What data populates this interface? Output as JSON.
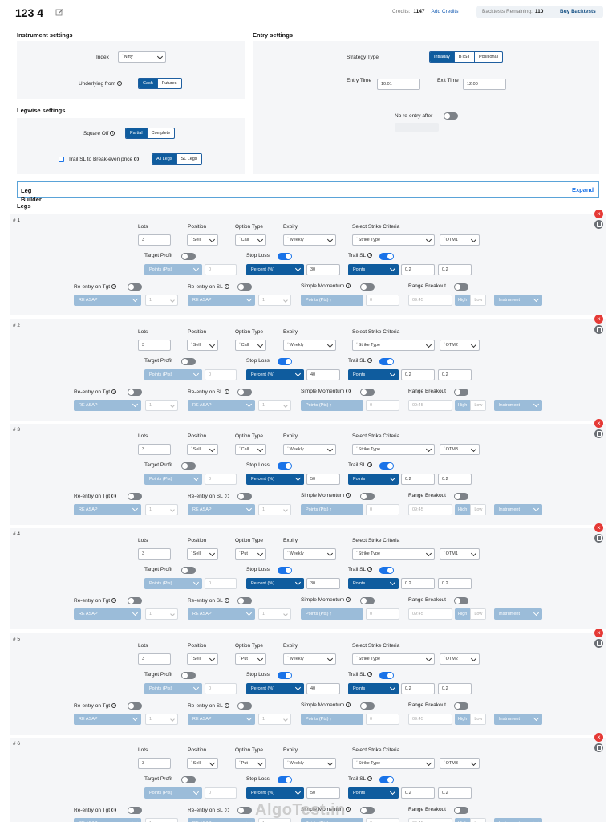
{
  "header": {
    "title": "123 4",
    "credits_label": "Credits:",
    "credits_value": "1147",
    "add_credits": "Add Credits",
    "backtests_label": "Backtests Remaining:",
    "backtests_value": "110",
    "buy_backtests": "Buy Backtests"
  },
  "instrument": {
    "title": "Instrument settings",
    "index_label": "Index",
    "index_value": "Nifty",
    "underlying_label": "Underlying from",
    "underlying_options": [
      "Cash",
      "Futures"
    ],
    "underlying_selected": "Cash"
  },
  "entry": {
    "title": "Entry settings",
    "strategy_label": "Strategy Type",
    "strategy_options": [
      "Intraday",
      "BTST",
      "Positional"
    ],
    "entry_time_label": "Entry Time",
    "entry_time": "10:01",
    "exit_time_label": "Exit Time",
    "exit_time": "12:00",
    "no_reentry_label": "No re-entry after"
  },
  "legwise": {
    "title": "Legwise settings",
    "square_off_label": "Square Off",
    "square_off_options": [
      "Partial",
      "Complete"
    ],
    "trail_label": "Trail SL to Break-even price",
    "trail_options": [
      "All Legs",
      "SL Legs"
    ]
  },
  "builder": {
    "title": "Leg Builder",
    "expand": "Expand"
  },
  "legs_title": "Legs",
  "leg_labels": {
    "lots": "Lots",
    "position": "Position",
    "option_type": "Option Type",
    "expiry": "Expiry",
    "strike_criteria": "Select Strike Criteria",
    "target_profit": "Target Profit",
    "stop_loss": "Stop Loss",
    "trail_sl": "Trail SL",
    "reentry_tgt": "Re-entry on Tgt",
    "reentry_sl": "Re-entry on SL",
    "simple_momentum": "Simple Momentum",
    "range_breakout": "Range Breakout",
    "points_pts": "Points (Pts)",
    "percent": "Percent (%)",
    "points": "Points",
    "re_asap": "RE ASAP",
    "points_pts_trunc": "Points (Pts) ↑",
    "time": "09:45",
    "high": "High",
    "low": "Low",
    "instrument": "Instrument"
  },
  "legs": [
    {
      "num": "# 1",
      "lots": "3",
      "position": "Sell",
      "option": "Call",
      "expiry": "Weekly",
      "strike_type": "Strike Type",
      "strike": "OTM1",
      "tp_value": "0",
      "sl_value": "30",
      "trail_x": "0.2",
      "trail_y": "0.2",
      "re_tgt_count": "1",
      "re_sl_count": "1",
      "mom_value": "0"
    },
    {
      "num": "# 2",
      "lots": "3",
      "position": "Sell",
      "option": "Call",
      "expiry": "Weekly",
      "strike_type": "Strike Type",
      "strike": "OTM2",
      "tp_value": "0",
      "sl_value": "40",
      "trail_x": "0.2",
      "trail_y": "0.2",
      "re_tgt_count": "1",
      "re_sl_count": "1",
      "mom_value": "0"
    },
    {
      "num": "# 3",
      "lots": "3",
      "position": "Sell",
      "option": "Call",
      "expiry": "Weekly",
      "strike_type": "Strike Type",
      "strike": "OTM3",
      "tp_value": "0",
      "sl_value": "50",
      "trail_x": "0.2",
      "trail_y": "0.2",
      "re_tgt_count": "1",
      "re_sl_count": "1",
      "mom_value": "0"
    },
    {
      "num": "# 4",
      "lots": "3",
      "position": "Sell",
      "option": "Put",
      "expiry": "Weekly",
      "strike_type": "Strike Type",
      "strike": "OTM1",
      "tp_value": "0",
      "sl_value": "30",
      "trail_x": "0.2",
      "trail_y": "0.2",
      "re_tgt_count": "1",
      "re_sl_count": "1",
      "mom_value": "0"
    },
    {
      "num": "# 5",
      "lots": "3",
      "position": "Sell",
      "option": "Put",
      "expiry": "Weekly",
      "strike_type": "Strike Type",
      "strike": "OTM2",
      "tp_value": "0",
      "sl_value": "40",
      "trail_x": "0.2",
      "trail_y": "0.2",
      "re_tgt_count": "1",
      "re_sl_count": "1",
      "mom_value": "0"
    },
    {
      "num": "# 6",
      "lots": "3",
      "position": "Sell",
      "option": "Put",
      "expiry": "Weekly",
      "strike_type": "Strike Type",
      "strike": "OTM3",
      "tp_value": "0",
      "sl_value": "50",
      "trail_x": "0.2",
      "trail_y": "0.2",
      "re_tgt_count": "1",
      "re_sl_count": "1",
      "mom_value": "0"
    }
  ],
  "watermark": "AlgoTest.in"
}
